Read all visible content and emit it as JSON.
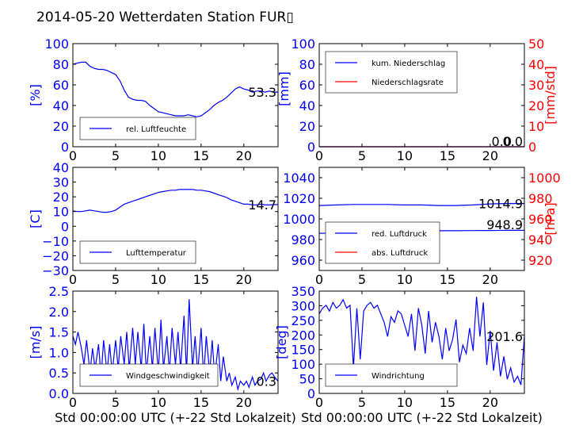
{
  "title": "2014-05-20 Wetterdaten Station FUR▯",
  "colors": {
    "primary": "#0000ff",
    "secondary": "#ff0000",
    "legendLine": "#0000ff"
  },
  "chart_data": [
    {
      "id": "humidity",
      "type": "line",
      "ylabel": "[%]",
      "xlim": [
        0,
        24
      ],
      "ylim": [
        0,
        100
      ],
      "xticks": [
        "0",
        "5",
        "10",
        "15",
        "20"
      ],
      "yticks": [
        "0",
        "20",
        "40",
        "60",
        "80",
        "100"
      ],
      "annotation": "53.3",
      "series": [
        {
          "name": "rel. Luftfeuchte",
          "x": [
            0,
            0.5,
            1,
            1.5,
            2,
            2.5,
            3,
            3.5,
            4,
            4.5,
            5,
            5.5,
            6,
            6.5,
            7,
            7.5,
            8,
            8.5,
            9,
            9.5,
            10,
            10.5,
            11,
            11.5,
            12,
            12.5,
            13,
            13.5,
            14,
            14.5,
            15,
            15.5,
            16,
            16.5,
            17,
            17.5,
            18,
            18.5,
            19,
            19.5,
            20,
            20.5,
            21,
            21.5,
            22,
            22.5,
            23,
            23.5,
            24
          ],
          "y": [
            80,
            81,
            82,
            82,
            78,
            76,
            75,
            75,
            74,
            72,
            70,
            64,
            55,
            48,
            46,
            45,
            45,
            44,
            40,
            37,
            34,
            33,
            32,
            31,
            30,
            30,
            30,
            31,
            30,
            29,
            30,
            33,
            36,
            40,
            43,
            45,
            48,
            52,
            56,
            58,
            56,
            55,
            53,
            54,
            54,
            53,
            54,
            53,
            53
          ]
        }
      ]
    },
    {
      "id": "precip",
      "type": "line",
      "ylabel": "[mm]",
      "ylabel2": "[mm/std]",
      "xlim": [
        0,
        24
      ],
      "ylim": [
        0,
        100
      ],
      "ylim2": [
        0,
        50
      ],
      "xticks": [
        "0",
        "5",
        "10",
        "15",
        "20"
      ],
      "yticks": [
        "0",
        "20",
        "40",
        "60",
        "80",
        "100"
      ],
      "yticks2": [
        "0",
        "10",
        "20",
        "30",
        "40",
        "50"
      ],
      "annotation": "0.0",
      "annotation2": "0.0",
      "series": [
        {
          "name": "kum. Niederschlag",
          "x": [
            0,
            24
          ],
          "y": [
            0,
            0
          ]
        },
        {
          "name": "Niederschlagsrate",
          "x": [
            0,
            24
          ],
          "y": [
            0,
            0
          ]
        }
      ]
    },
    {
      "id": "temperature",
      "type": "line",
      "ylabel": "[C]",
      "xlim": [
        0,
        24
      ],
      "ylim": [
        -30,
        40
      ],
      "xticks": [
        "0",
        "5",
        "10",
        "15",
        "20"
      ],
      "yticks": [
        "−30",
        "−20",
        "−10",
        "0",
        "10",
        "20",
        "30",
        "40"
      ],
      "annotation": "14.7",
      "series": [
        {
          "name": "Lufttemperatur",
          "x": [
            0,
            0.5,
            1,
            1.5,
            2,
            2.5,
            3,
            3.5,
            4,
            4.5,
            5,
            5.5,
            6,
            6.5,
            7,
            7.5,
            8,
            8.5,
            9,
            9.5,
            10,
            10.5,
            11,
            11.5,
            12,
            12.5,
            13,
            13.5,
            14,
            14.5,
            15,
            15.5,
            16,
            16.5,
            17,
            17.5,
            18,
            18.5,
            19,
            19.5,
            20,
            20.5,
            21,
            21.5,
            22,
            22.5,
            23,
            23.5,
            24
          ],
          "y": [
            10.5,
            10,
            10,
            10.5,
            11,
            10.5,
            10,
            9.5,
            9.5,
            10,
            11,
            13,
            15,
            16,
            17,
            18,
            19,
            20,
            21,
            22,
            23,
            23.5,
            24,
            24.5,
            24.5,
            25,
            25,
            25,
            25,
            24.5,
            24.5,
            24,
            23.5,
            22.5,
            21.5,
            20.5,
            19.5,
            18,
            17,
            16,
            15,
            15,
            14.5,
            14.5,
            15,
            14.5,
            14.5,
            14.7,
            14.7
          ]
        }
      ]
    },
    {
      "id": "pressure",
      "type": "line",
      "ylabel2": "[hPa]",
      "xlim": [
        0,
        24
      ],
      "ylim": [
        950,
        1050
      ],
      "ylim2": [
        910,
        1010
      ],
      "xticks": [
        "0",
        "5",
        "10",
        "15",
        "20"
      ],
      "yticks": [
        "960",
        "980",
        "1000",
        "1020",
        "1040"
      ],
      "yticks2": [
        "920",
        "940",
        "960",
        "980",
        "1000"
      ],
      "annotation": "1014.9",
      "annotation2": "948.9",
      "series": [
        {
          "name": "red. Luftdruck",
          "x": [
            0,
            2,
            4,
            6,
            8,
            10,
            12,
            14,
            16,
            18,
            20,
            22,
            24
          ],
          "y": [
            1013,
            1013.5,
            1014,
            1014,
            1014,
            1013.5,
            1013.5,
            1013,
            1013,
            1013.5,
            1014.5,
            1015,
            1014.9
          ]
        },
        {
          "name": "abs. Luftdruck",
          "x": [
            0,
            2,
            4,
            6,
            8,
            10,
            12,
            14,
            16,
            18,
            20,
            22,
            24
          ],
          "y": [
            946,
            946.5,
            947,
            948,
            948.5,
            948.5,
            948.5,
            948.5,
            948.5,
            948.7,
            948.8,
            948.9,
            948.9
          ]
        }
      ]
    },
    {
      "id": "windspeed",
      "type": "line",
      "ylabel": "[m/s]",
      "xlabel": "Std 00:00:00 UTC (+-22 Std Lokalzeit)",
      "xlim": [
        0,
        24
      ],
      "ylim": [
        0,
        2.5
      ],
      "xticks": [
        "0",
        "5",
        "10",
        "15",
        "20"
      ],
      "yticks": [
        "0.0",
        "0.5",
        "1.0",
        "1.5",
        "2.0",
        "2.5"
      ],
      "annotation": "0.3",
      "series": [
        {
          "name": "Windgeschwindigkeit",
          "x": [
            0,
            0.3,
            0.6,
            1,
            1.3,
            1.6,
            2,
            2.3,
            2.6,
            3,
            3.3,
            3.6,
            4,
            4.3,
            4.6,
            5,
            5.3,
            5.6,
            6,
            6.3,
            6.6,
            7,
            7.3,
            7.6,
            8,
            8.3,
            8.6,
            9,
            9.3,
            9.6,
            10,
            10.3,
            10.6,
            11,
            11.3,
            11.6,
            12,
            12.3,
            12.6,
            13,
            13.3,
            13.6,
            14,
            14.3,
            14.6,
            15,
            15.3,
            15.6,
            16,
            16.3,
            16.6,
            17,
            17.3,
            17.6,
            18,
            18.3,
            18.6,
            19,
            19.3,
            19.6,
            20,
            20.3,
            20.6,
            21,
            21.3,
            21.6,
            22,
            22.3,
            22.6,
            23,
            23.3,
            23.6,
            24
          ],
          "y": [
            1.4,
            1.2,
            1.5,
            1.1,
            0.7,
            1.3,
            0.5,
            1.1,
            0.6,
            1.2,
            0.4,
            1.3,
            0.5,
            1.2,
            0.5,
            1.3,
            0.6,
            1.4,
            0.7,
            1.5,
            0.6,
            1.6,
            0.7,
            1.5,
            0.6,
            1.7,
            0.5,
            1.4,
            0.6,
            1.6,
            0.5,
            1.8,
            0.6,
            1.4,
            0.5,
            1.6,
            0.7,
            1.5,
            0.6,
            1.9,
            0.5,
            2.3,
            0.6,
            1.4,
            0.5,
            1.6,
            0.4,
            1.4,
            0.5,
            1.3,
            0.4,
            1.2,
            0.3,
            0.9,
            0.3,
            0.5,
            0.2,
            0.4,
            0.1,
            0.3,
            0.2,
            0.3,
            0.15,
            0.4,
            0.2,
            0.3,
            0.35,
            0.5,
            0.3,
            0.45,
            0.5,
            0.4,
            0.3
          ]
        }
      ]
    },
    {
      "id": "winddir",
      "type": "line",
      "ylabel": "[deg]",
      "xlabel": "Std 00:00:00 UTC (+-22 Std Lokalzeit)",
      "xlim": [
        0,
        24
      ],
      "ylim": [
        0,
        360
      ],
      "xticks": [
        "0",
        "5",
        "10",
        "15",
        "20"
      ],
      "yticks": [
        "0",
        "50",
        "100",
        "150",
        "200",
        "250",
        "300",
        "350"
      ],
      "annotation": "201.6",
      "series": [
        {
          "name": "Windrichtung",
          "x": [
            0,
            0.4,
            0.8,
            1.2,
            1.6,
            2,
            2.4,
            2.8,
            3.2,
            3.6,
            4,
            4.4,
            4.8,
            5.2,
            5.6,
            6,
            6.4,
            6.8,
            7.2,
            7.6,
            8,
            8.4,
            8.8,
            9.2,
            9.6,
            10,
            10.4,
            10.8,
            11.2,
            11.6,
            12,
            12.4,
            12.8,
            13.2,
            13.6,
            14,
            14.4,
            14.8,
            15.2,
            15.6,
            16,
            16.4,
            16.8,
            17.2,
            17.6,
            18,
            18.4,
            18.8,
            19.2,
            19.6,
            20,
            20.4,
            20.8,
            21.2,
            21.6,
            22,
            22.4,
            22.8,
            23.2,
            23.6,
            24
          ],
          "y": [
            280,
            300,
            310,
            290,
            320,
            300,
            310,
            330,
            300,
            310,
            90,
            300,
            120,
            290,
            310,
            320,
            300,
            310,
            280,
            250,
            200,
            270,
            250,
            290,
            280,
            240,
            200,
            280,
            150,
            300,
            240,
            140,
            290,
            180,
            250,
            200,
            120,
            230,
            150,
            190,
            260,
            110,
            170,
            140,
            230,
            150,
            340,
            200,
            320,
            100,
            220,
            80,
            180,
            60,
            130,
            50,
            90,
            40,
            60,
            30,
            201.6
          ]
        }
      ]
    }
  ]
}
